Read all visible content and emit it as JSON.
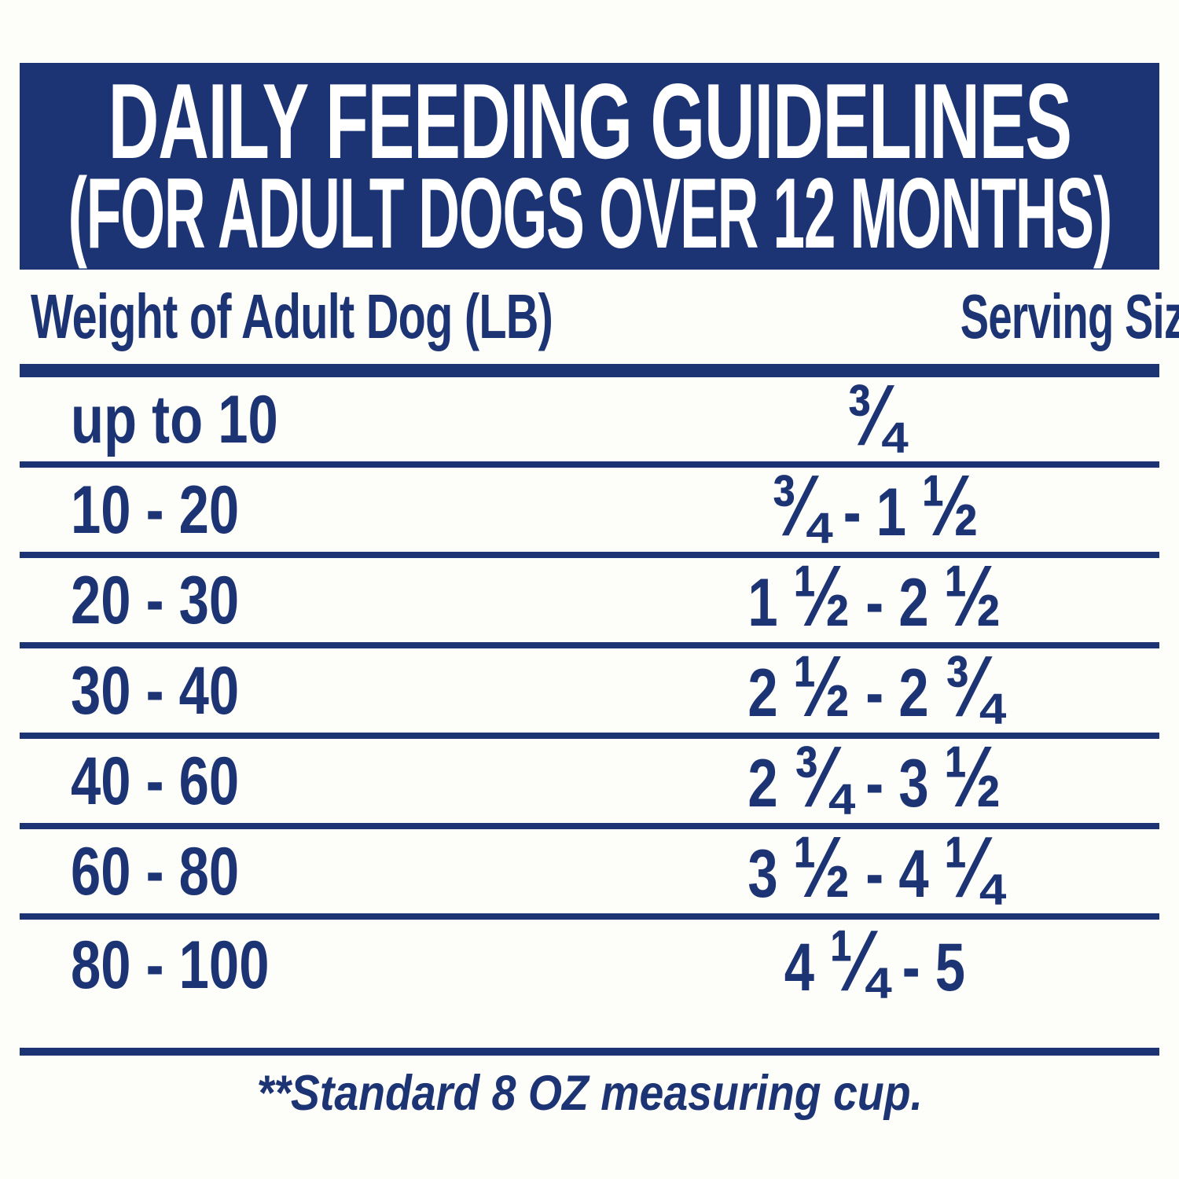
{
  "colors": {
    "navy": "#1c3474",
    "banner_text": "#ffffff",
    "background": "#fdfdfa"
  },
  "banner": {
    "title_line1": "DAILY FEEDING GUIDELINES",
    "title_line2": "(FOR ADULT DOGS OVER 12 MONTHS)"
  },
  "table": {
    "columns": [
      "Weight of Adult Dog (LB)",
      "Serving Size (CUPS**)"
    ],
    "rows": [
      {
        "weight": "up to 10",
        "serving": "¾"
      },
      {
        "weight": "10 - 20",
        "serving": "¾ - 1 ½"
      },
      {
        "weight": "20 - 30",
        "serving": "1 ½ - 2 ½"
      },
      {
        "weight": "30 - 40",
        "serving": "2 ½ - 2 ¾"
      },
      {
        "weight": "40 - 60",
        "serving": "2 ¾ - 3 ½"
      },
      {
        "weight": "60 - 80",
        "serving": "3 ½ - 4 ¼"
      },
      {
        "weight": "80 - 100",
        "serving": "4 ¼ - 5"
      }
    ]
  },
  "footnote": "**Standard 8 OZ measuring cup."
}
